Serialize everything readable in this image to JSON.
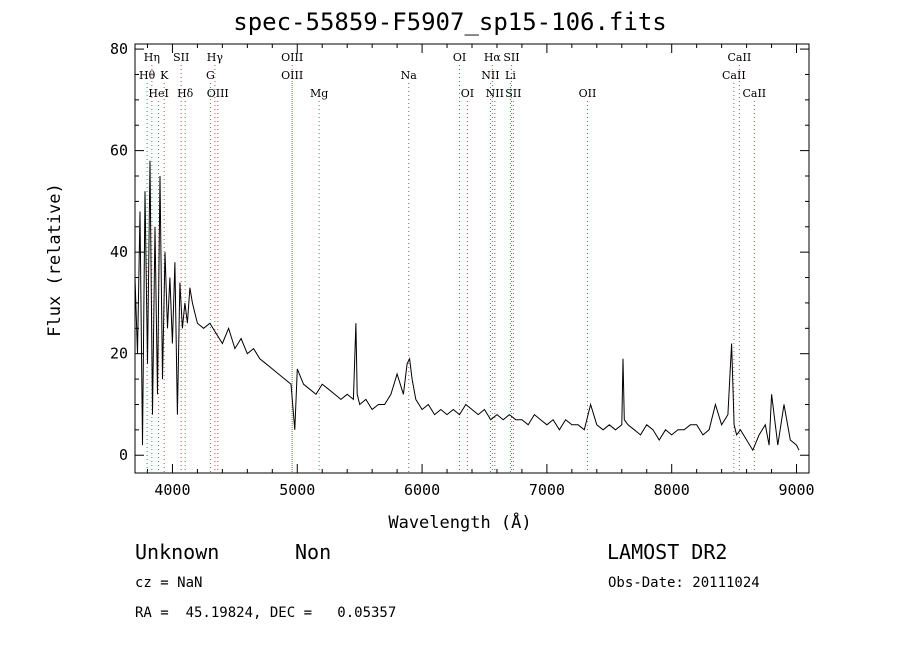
{
  "title": "spec-55859-F5907_sp15-106.fits",
  "chart_data": {
    "type": "line",
    "title": "spec-55859-F5907_sp15-106.fits",
    "xlabel": "Wavelength (Å)",
    "ylabel": "Flux (relative)",
    "xlim": [
      3700,
      9100
    ],
    "ylim": [
      -3.5,
      81
    ],
    "x_ticks": [
      4000,
      5000,
      6000,
      7000,
      8000,
      9000
    ],
    "y_ticks": [
      0,
      20,
      40,
      60,
      80
    ],
    "grid": false,
    "series": [
      {
        "x": [
          3700,
          3720,
          3740,
          3760,
          3780,
          3800,
          3820,
          3840,
          3860,
          3880,
          3900,
          3920,
          3940,
          3960,
          3980,
          4000,
          4020,
          4040,
          4060,
          4080,
          4100,
          4120,
          4140,
          4160,
          4180,
          4200,
          4250,
          4300,
          4350,
          4400,
          4450,
          4500,
          4550,
          4600,
          4650,
          4700,
          4750,
          4800,
          4850,
          4900,
          4950,
          4980,
          5000,
          5050,
          5100,
          5150,
          5200,
          5250,
          5300,
          5350,
          5400,
          5450,
          5470,
          5480,
          5500,
          5550,
          5600,
          5650,
          5700,
          5750,
          5800,
          5850,
          5880,
          5900,
          5920,
          5950,
          6000,
          6050,
          6100,
          6150,
          6200,
          6250,
          6300,
          6350,
          6400,
          6450,
          6500,
          6550,
          6600,
          6650,
          6700,
          6750,
          6800,
          6850,
          6900,
          6950,
          7000,
          7050,
          7100,
          7150,
          7200,
          7250,
          7300,
          7350,
          7400,
          7450,
          7500,
          7550,
          7600,
          7610,
          7620,
          7650,
          7700,
          7750,
          7800,
          7850,
          7900,
          7950,
          8000,
          8050,
          8100,
          8150,
          8200,
          8250,
          8300,
          8350,
          8400,
          8450,
          8480,
          8500,
          8520,
          8550,
          8600,
          8650,
          8700,
          8750,
          8780,
          8800,
          8850,
          8900,
          8950,
          9000,
          9020
        ],
        "y": [
          35,
          20,
          48,
          2,
          52,
          18,
          58,
          8,
          45,
          12,
          55,
          15,
          40,
          25,
          35,
          22,
          38,
          8,
          34,
          25,
          30,
          26,
          33,
          30,
          28,
          26,
          25,
          26,
          24,
          22,
          25,
          21,
          23,
          20,
          21,
          19,
          18,
          17,
          16,
          15,
          14,
          5,
          17,
          14,
          13,
          12,
          14,
          13,
          12,
          11,
          12,
          11,
          26,
          12,
          10,
          11,
          9,
          10,
          10,
          12,
          16,
          12,
          18,
          19,
          15,
          11,
          9,
          10,
          8,
          9,
          8,
          9,
          8,
          10,
          9,
          8,
          9,
          7,
          8,
          7,
          8,
          7,
          7,
          6,
          8,
          7,
          6,
          7,
          5,
          7,
          6,
          6,
          5,
          10,
          6,
          5,
          6,
          5,
          6,
          19,
          7,
          6,
          5,
          4,
          6,
          5,
          3,
          5,
          4,
          5,
          5,
          6,
          6,
          4,
          5,
          10,
          6,
          8,
          22,
          6,
          4,
          5,
          3,
          1,
          4,
          6,
          2,
          12,
          2,
          10,
          3,
          2,
          1
        ]
      }
    ],
    "lines": {
      "row1": [
        {
          "label": "Hη",
          "x": 3835
        },
        {
          "label": "SII",
          "x": 4070
        },
        {
          "label": "Hγ",
          "x": 4340
        },
        {
          "label": "OIII",
          "x": 4959
        },
        {
          "label": "OI",
          "x": 6300
        },
        {
          "label": "Hα",
          "x": 6563
        },
        {
          "label": "SII",
          "x": 6716
        },
        {
          "label": "CaII",
          "x": 8542
        }
      ],
      "row2": [
        {
          "label": "Hθ",
          "x": 3797
        },
        {
          "label": "K",
          "x": 3934
        },
        {
          "label": "G",
          "x": 4304
        },
        {
          "label": "OIII",
          "x": 4959
        },
        {
          "label": "Na",
          "x": 5893
        },
        {
          "label": "NII",
          "x": 6548
        },
        {
          "label": "Li",
          "x": 6708
        },
        {
          "label": "CaII",
          "x": 8498
        }
      ],
      "row3": [
        {
          "label": "HeI",
          "x": 3889
        },
        {
          "label": "Hδ",
          "x": 4102
        },
        {
          "label": "OIII",
          "x": 4363
        },
        {
          "label": "Mg",
          "x": 5175
        },
        {
          "label": "OI",
          "x": 6363
        },
        {
          "label": "NII",
          "x": 6583
        },
        {
          "label": "SII",
          "x": 6731
        },
        {
          "label": "OII",
          "x": 7325
        },
        {
          "label": "CaII",
          "x": 8662
        }
      ]
    }
  },
  "info": {
    "class": "Unknown",
    "subclass": "Non",
    "survey": "LAMOST DR2",
    "cz": "cz = NaN",
    "obs_date": "Obs-Date: 20111024",
    "coords": "RA =  45.19824, DEC =   0.05357"
  }
}
